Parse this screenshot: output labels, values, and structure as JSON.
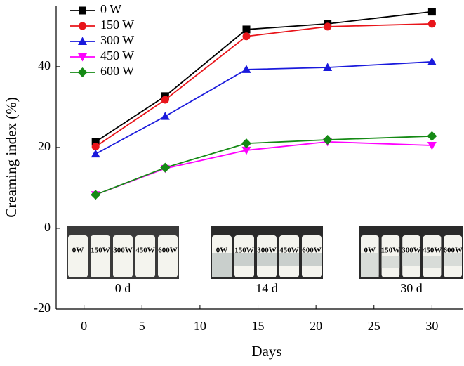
{
  "chart_data": {
    "type": "line",
    "xlabel": "Days",
    "ylabel": "Creaming index (%)",
    "x": [
      1,
      7,
      14,
      21,
      30
    ],
    "series": [
      {
        "name": "0 W",
        "color": "#000000",
        "marker": "square",
        "values": [
          21.4,
          32.7,
          49.2,
          50.6,
          53.6
        ]
      },
      {
        "name": "150 W",
        "color": "#e8141a",
        "marker": "circle",
        "values": [
          20.2,
          31.8,
          47.5,
          49.9,
          50.6
        ]
      },
      {
        "name": "300 W",
        "color": "#1a1adc",
        "marker": "triangle-up",
        "values": [
          18.4,
          27.7,
          39.3,
          39.8,
          41.2
        ]
      },
      {
        "name": "450 W",
        "color": "#ff00ff",
        "marker": "triangle-down",
        "values": [
          8.3,
          14.8,
          19.3,
          21.4,
          20.5
        ]
      },
      {
        "name": "600 W",
        "color": "#158a15",
        "marker": "diamond",
        "values": [
          8.3,
          15.0,
          21.0,
          21.9,
          22.8
        ]
      }
    ],
    "xlim": [
      -2.4,
      32.7
    ],
    "ylim": [
      -20,
      55.1
    ],
    "xticks": [
      0,
      5,
      10,
      15,
      20,
      25,
      30
    ],
    "yticks": [
      -20,
      0,
      20,
      40
    ],
    "legend": "upper left",
    "annotations": [
      {
        "label": "0 d",
        "bottles": [
          "0W",
          "150W",
          "300W",
          "450W",
          "600W"
        ]
      },
      {
        "label": "14 d",
        "bottles": [
          "0W",
          "150W",
          "300W",
          "450W",
          "600W"
        ]
      },
      {
        "label": "30 d",
        "bottles": [
          "0W",
          "150W",
          "300W",
          "450W",
          "600W"
        ]
      }
    ]
  }
}
